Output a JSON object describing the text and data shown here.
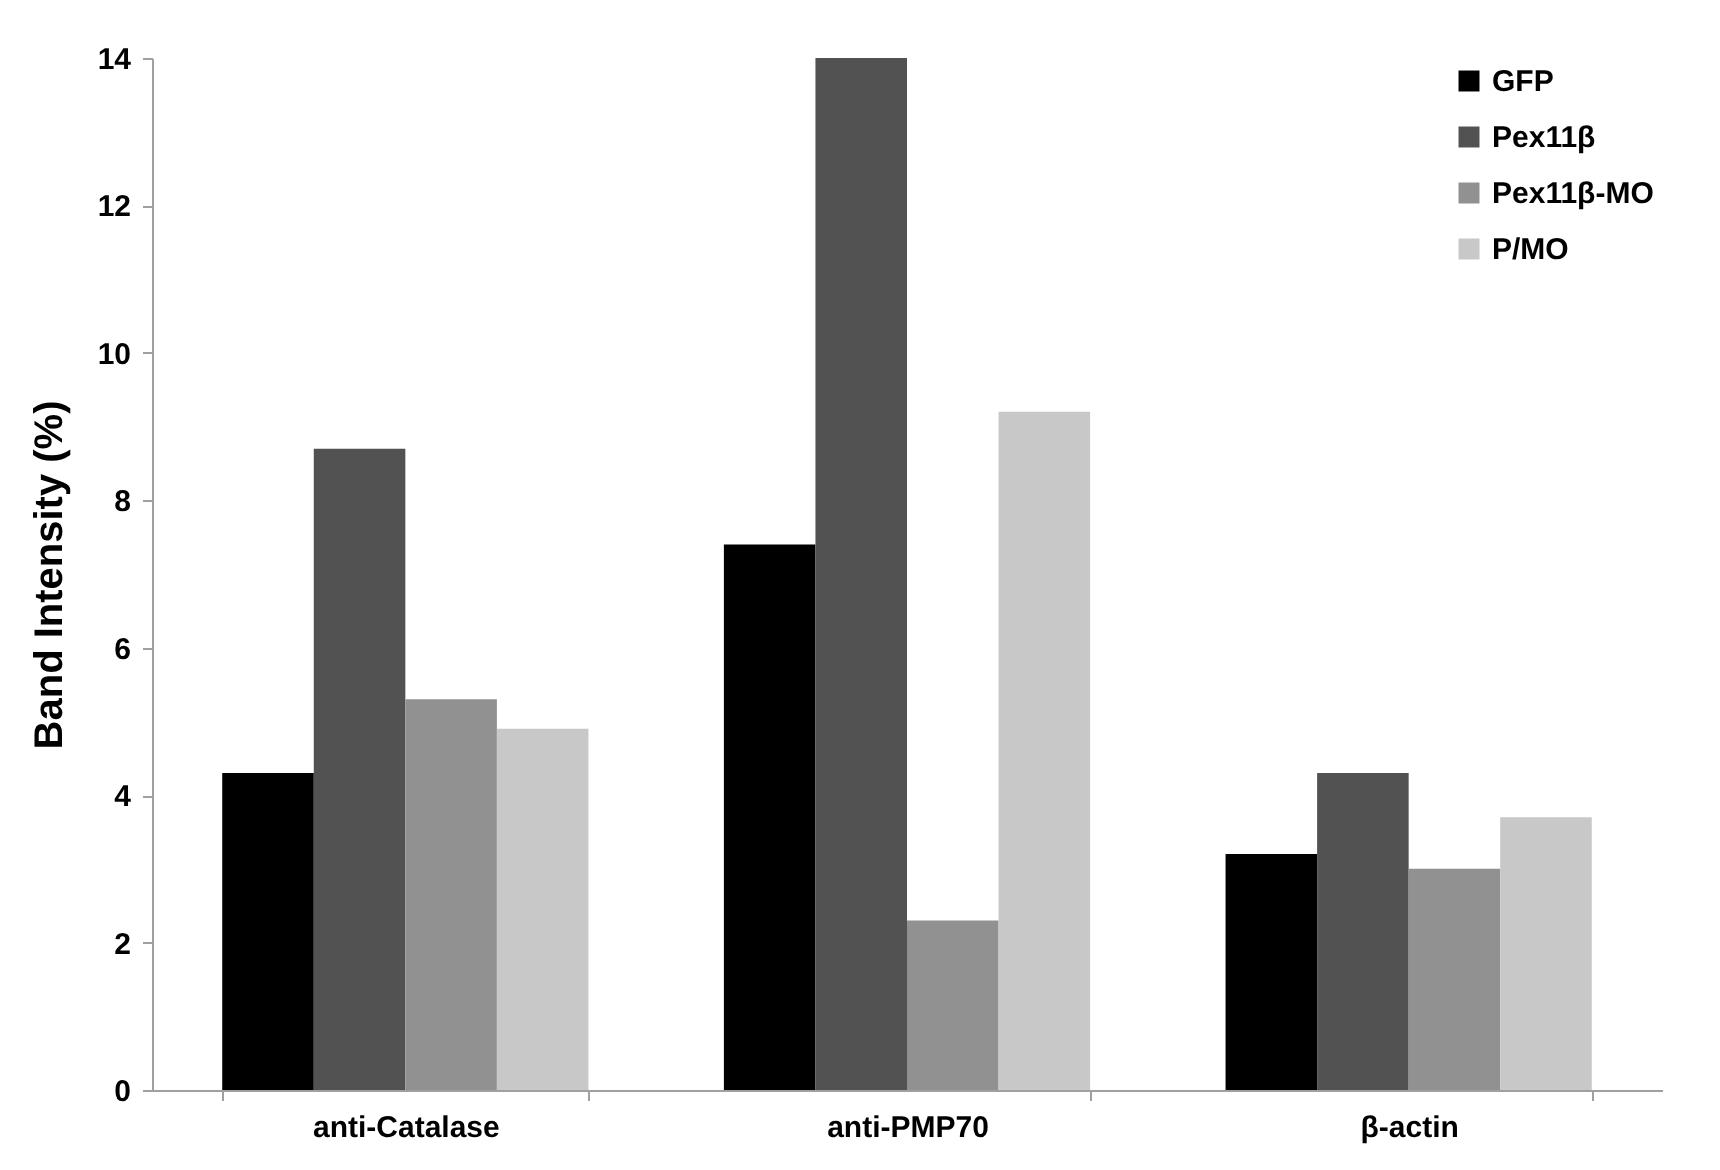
{
  "chart_data": {
    "type": "bar",
    "ylabel": "Band Intensity (%)",
    "categories": [
      "anti-Catalase",
      "anti-PMP70",
      "β-actin"
    ],
    "series": [
      {
        "name": "GFP",
        "color": "#000000",
        "values": [
          4.3,
          7.4,
          3.2
        ]
      },
      {
        "name": "Pex11β",
        "color": "#525252",
        "values": [
          8.7,
          14.0,
          4.3
        ]
      },
      {
        "name": "Pex11β-MO",
        "color": "#919191",
        "values": [
          5.3,
          2.3,
          3.0
        ]
      },
      {
        "name": "P/MO",
        "color": "#c8c8c8",
        "values": [
          4.9,
          9.2,
          3.7
        ]
      }
    ],
    "ylim": [
      0,
      14
    ],
    "yticks": [
      0,
      2,
      4,
      6,
      8,
      10,
      12,
      14
    ],
    "grid": false,
    "legend": "top right"
  }
}
